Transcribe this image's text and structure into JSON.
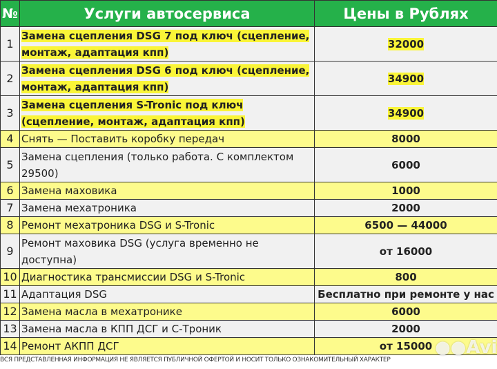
{
  "header": {
    "num": "№",
    "service": "Услуги автосервиса",
    "price": "Цены в Рублях"
  },
  "rows": [
    {
      "n": "1",
      "lines": [
        "Замена сцепления DSG 7 под ключ (сцепление,",
        "монтаж, адаптация кпп)"
      ],
      "price": "32000",
      "style": "gray",
      "highlight": true
    },
    {
      "n": "2",
      "lines": [
        "Замена сцепления DSG 6 под ключ (сцепление,",
        "монтаж, адаптация кпп)"
      ],
      "price": "34900",
      "style": "gray",
      "highlight": true
    },
    {
      "n": "3",
      "lines": [
        "Замена сцепления S-Tronic под ключ",
        "(сцепление, монтаж, адаптация кпп)"
      ],
      "price": "34900",
      "style": "gray",
      "highlight": true
    },
    {
      "n": "4",
      "lines": [
        "Снять — Поставить коробку передач"
      ],
      "price": "8000",
      "style": "yel"
    },
    {
      "n": "5",
      "lines": [
        "Замена сцепления (только работа. С комплектом",
        "29500)"
      ],
      "price": "6000",
      "style": "gray"
    },
    {
      "n": "6",
      "lines": [
        "Замена маховика"
      ],
      "price": "1000",
      "style": "yel"
    },
    {
      "n": "7",
      "lines": [
        "Замена мехатроника"
      ],
      "price": "2000",
      "style": "gray"
    },
    {
      "n": "8",
      "lines": [
        "Ремонт мехатроника DSG и S-Tronic"
      ],
      "price": "6500 — 44000",
      "style": "yel"
    },
    {
      "n": "9",
      "lines": [
        "Ремонт маховика DSG (услуга временно не",
        "доступна)"
      ],
      "price": "от 16000",
      "style": "gray"
    },
    {
      "n": "10",
      "lines": [
        "Диагностика трансмиссии DSG и S-Tronic"
      ],
      "price": "800",
      "style": "yel"
    },
    {
      "n": "11",
      "lines": [
        "Адаптация DSG"
      ],
      "price": "Бесплатно при ремонте у нас",
      "style": "gray"
    },
    {
      "n": "12",
      "lines": [
        "Замена масла в мехатронике"
      ],
      "price": "6000",
      "style": "yel"
    },
    {
      "n": "13",
      "lines": [
        "Замена масла в КПП ДСГ и С-Троник"
      ],
      "price": "2000",
      "style": "gray"
    },
    {
      "n": "14",
      "lines": [
        "Ремонт АКПП ДСГ"
      ],
      "price": "от 15000",
      "style": "yel"
    }
  ],
  "footer": "ВСЯ ПРЕДСТАВЛЕННАЯ ИНФОРМАЦИЯ НЕ ЯВЛЯЕТСЯ ПУБЛИЧНОЙ ОФЕРТОЙ И НОСИТ ТОЛЬКО ОЗНАКОМИТЕЛЬНЫЙ ХАРАКТЕР",
  "watermark": "Avito"
}
